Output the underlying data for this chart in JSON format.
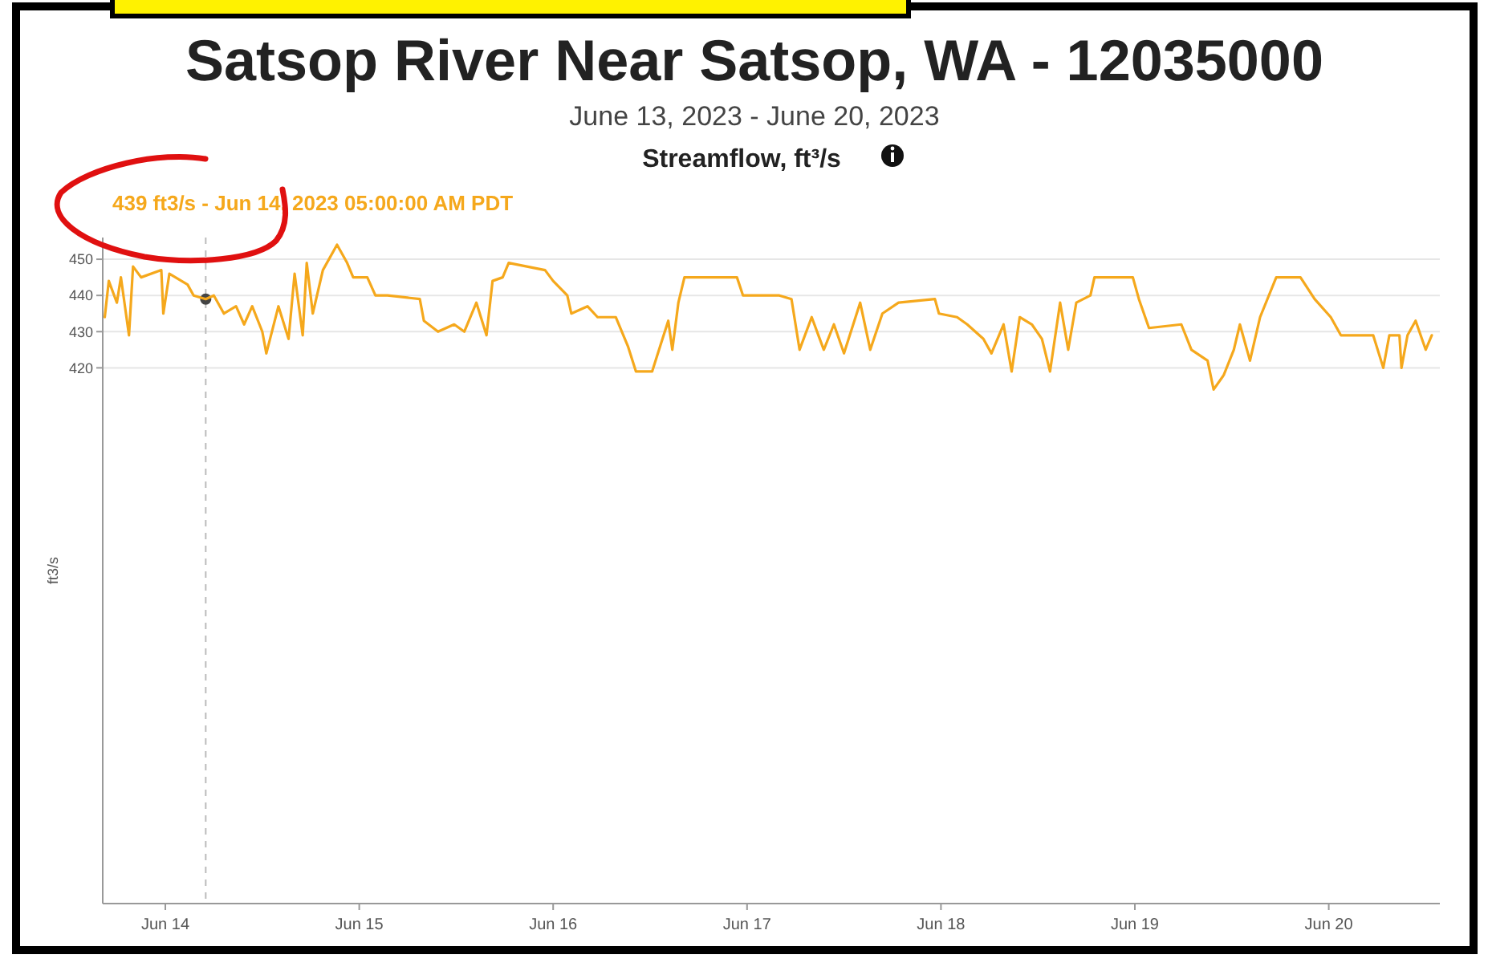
{
  "chart_data": {
    "type": "line",
    "title": "Satsop River Near Satsop, WA - 12035000",
    "subtitle": "June 13, 2023 - June 20, 2023",
    "ylabel": "ft3/s",
    "annotations": [
      "Streamflow, ft³/s",
      "439 ft3/s - Jun 14, 2023 05:00:00 AM PDT"
    ],
    "xlim": [
      "2023-06-13T16:15",
      "2023-06-20T13:45"
    ],
    "xticks": [
      {
        "value": "2023-06-14",
        "label": "Jun 14"
      },
      {
        "value": "2023-06-15",
        "label": "Jun 15"
      },
      {
        "value": "2023-06-16",
        "label": "Jun 16"
      },
      {
        "value": "2023-06-17",
        "label": "Jun 17"
      },
      {
        "value": "2023-06-18",
        "label": "Jun 18"
      },
      {
        "value": "2023-06-19",
        "label": "Jun 19"
      },
      {
        "value": "2023-06-20",
        "label": "Jun 20"
      }
    ],
    "ylim": [
      272,
      456
    ],
    "yticks": [
      420,
      430,
      440,
      450
    ],
    "grid": "y",
    "ref_lines": [
      {
        "axis": "x",
        "value": "2023-06-14T05:00",
        "line_style": "dashed",
        "color": "#bbbbbb"
      }
    ],
    "series": [
      {
        "type": "scatter",
        "color": "#444444",
        "marker": "circle",
        "x": [
          "2023-06-14T05:00"
        ],
        "values": [
          439
        ]
      },
      {
        "color": "#f5a81c",
        "x": [
          "2023-06-13T16:30",
          "2023-06-13T17:00",
          "2023-06-13T18:00",
          "2023-06-13T18:30",
          "2023-06-13T19:30",
          "2023-06-13T20:00",
          "2023-06-13T21:00",
          "2023-06-13T23:30",
          "2023-06-13T23:45",
          "2023-06-14T00:30",
          "2023-06-14T02:45",
          "2023-06-14T03:30",
          "2023-06-14T05:00",
          "2023-06-14T06:00",
          "2023-06-14T07:15",
          "2023-06-14T08:45",
          "2023-06-14T09:45",
          "2023-06-14T10:45",
          "2023-06-14T12:00",
          "2023-06-14T12:30",
          "2023-06-14T14:00",
          "2023-06-14T15:15",
          "2023-06-14T16:00",
          "2023-06-14T17:00",
          "2023-06-14T17:30",
          "2023-06-14T18:15",
          "2023-06-14T19:30",
          "2023-06-14T21:15",
          "2023-06-14T22:30",
          "2023-06-14T23:15",
          "2023-06-15T01:00",
          "2023-06-15T02:00",
          "2023-06-15T03:30",
          "2023-06-15T07:30",
          "2023-06-15T08:00",
          "2023-06-15T09:45",
          "2023-06-15T11:45",
          "2023-06-15T13:00",
          "2023-06-15T14:30",
          "2023-06-15T15:45",
          "2023-06-15T16:30",
          "2023-06-15T17:45",
          "2023-06-15T18:30",
          "2023-06-15T23:00",
          "2023-06-16T00:00",
          "2023-06-16T01:45",
          "2023-06-16T02:15",
          "2023-06-16T04:15",
          "2023-06-16T05:30",
          "2023-06-16T07:45",
          "2023-06-16T09:15",
          "2023-06-16T10:15",
          "2023-06-16T12:15",
          "2023-06-16T13:15",
          "2023-06-16T14:15",
          "2023-06-16T14:45",
          "2023-06-16T15:30",
          "2023-06-16T16:15",
          "2023-06-16T22:45",
          "2023-06-16T23:30",
          "2023-06-17T04:00",
          "2023-06-17T05:30",
          "2023-06-17T06:30",
          "2023-06-17T08:00",
          "2023-06-17T09:30",
          "2023-06-17T10:45",
          "2023-06-17T12:00",
          "2023-06-17T14:00",
          "2023-06-17T15:15",
          "2023-06-17T16:45",
          "2023-06-17T18:45",
          "2023-06-17T23:15",
          "2023-06-17T23:45",
          "2023-06-18T02:00",
          "2023-06-18T03:15",
          "2023-06-18T05:15",
          "2023-06-18T06:15",
          "2023-06-18T07:45",
          "2023-06-18T08:45",
          "2023-06-18T09:45",
          "2023-06-18T11:15",
          "2023-06-18T12:30",
          "2023-06-18T13:30",
          "2023-06-18T14:45",
          "2023-06-18T15:45",
          "2023-06-18T16:45",
          "2023-06-18T18:30",
          "2023-06-18T19:00",
          "2023-06-18T23:45",
          "2023-06-19T00:30",
          "2023-06-19T01:45",
          "2023-06-19T05:45",
          "2023-06-19T07:00",
          "2023-06-19T09:00",
          "2023-06-19T09:45",
          "2023-06-19T11:00",
          "2023-06-19T12:15",
          "2023-06-19T13:00",
          "2023-06-19T14:15",
          "2023-06-19T15:30",
          "2023-06-19T17:30",
          "2023-06-19T20:30",
          "2023-06-19T22:15",
          "2023-06-20T00:15",
          "2023-06-20T01:30",
          "2023-06-20T05:30",
          "2023-06-20T06:45",
          "2023-06-20T07:30",
          "2023-06-20T08:45",
          "2023-06-20T09:00",
          "2023-06-20T09:45",
          "2023-06-20T10:45",
          "2023-06-20T12:00",
          "2023-06-20T12:45"
        ],
        "values": [
          434,
          444,
          438,
          445,
          429,
          448,
          445,
          447,
          435,
          446,
          443,
          440,
          439,
          440,
          435,
          437,
          432,
          437,
          430,
          424,
          437,
          428,
          446,
          429,
          449,
          435,
          447,
          454,
          449,
          445,
          445,
          440,
          440,
          439,
          433,
          430,
          432,
          430,
          438,
          429,
          444,
          445,
          449,
          447,
          444,
          440,
          435,
          437,
          434,
          434,
          426,
          419,
          419,
          426,
          433,
          425,
          438,
          445,
          445,
          440,
          440,
          439,
          425,
          434,
          425,
          432,
          424,
          438,
          425,
          435,
          438,
          439,
          435,
          434,
          432,
          428,
          424,
          432,
          419,
          434,
          432,
          428,
          419,
          438,
          425,
          438,
          440,
          445,
          445,
          439,
          431,
          432,
          425,
          422,
          414,
          418,
          425,
          432,
          422,
          434,
          445,
          445,
          439,
          434,
          429,
          429,
          420,
          429,
          429,
          420,
          429,
          433,
          425,
          429
        ]
      }
    ]
  }
}
